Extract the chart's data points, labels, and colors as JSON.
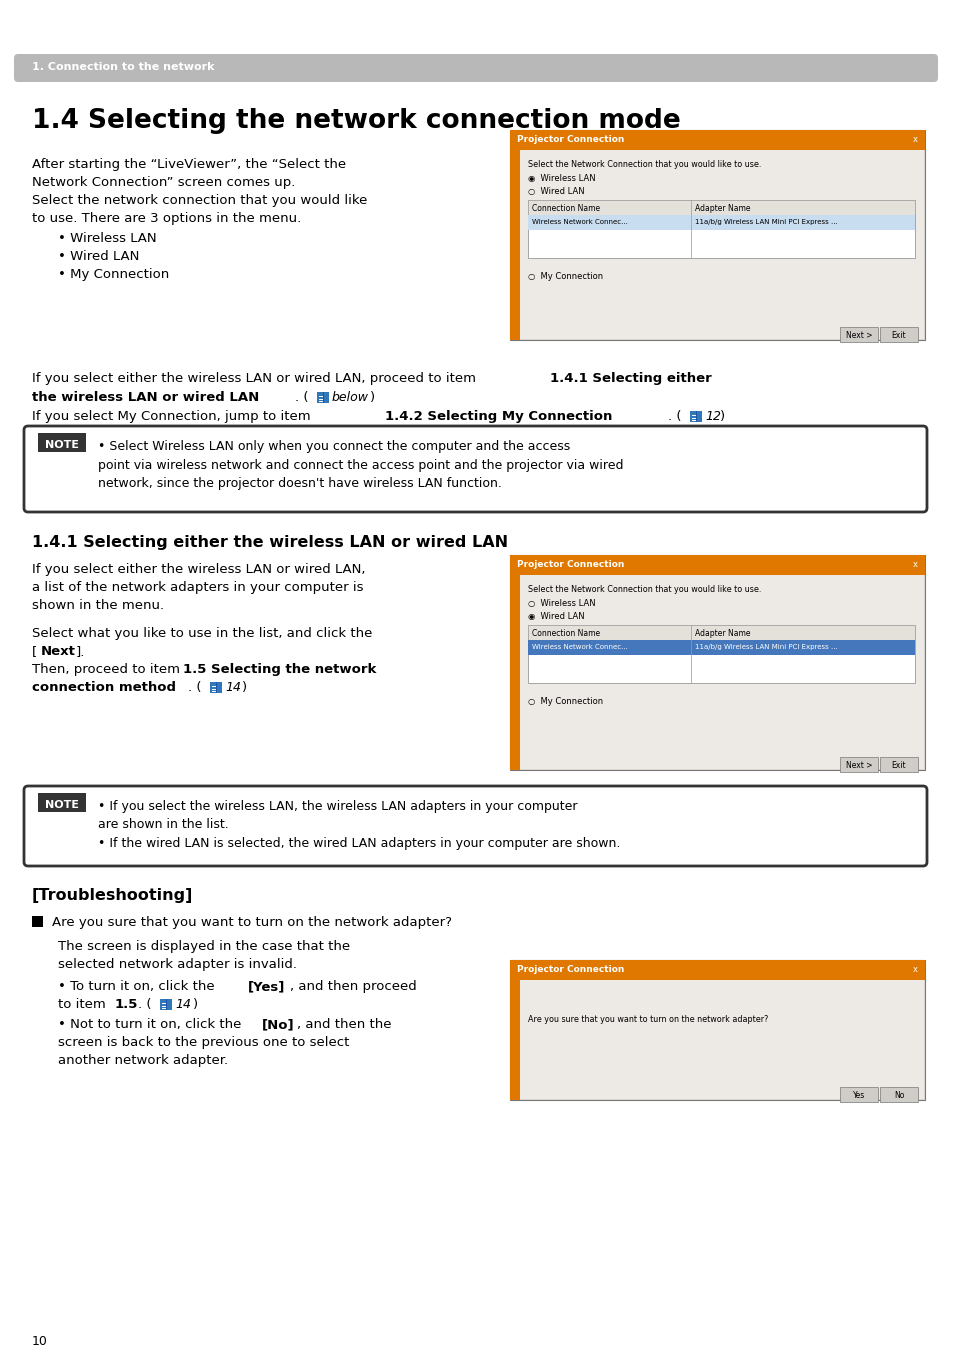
{
  "page_bg": "#ffffff",
  "header_bar_color": "#b8b8b8",
  "header_text": "1. Connection to the network",
  "header_text_color": "#ffffff",
  "title": "1.4 Selecting the network connection mode",
  "title_color": "#000000",
  "orange_color": "#e07800",
  "body_text_color": "#000000",
  "page_number": "10"
}
